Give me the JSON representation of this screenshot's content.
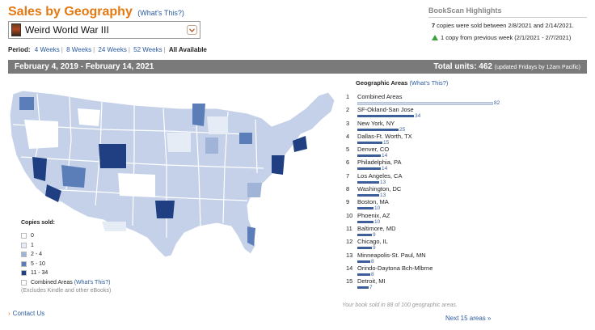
{
  "header": {
    "title": "Sales by Geography",
    "help_link": "(What's This?)"
  },
  "title_select": {
    "value": "Weird World War III"
  },
  "period": {
    "label": "Period:",
    "options": [
      "4 Weeks",
      "8 Weeks",
      "24 Weeks",
      "52 Weeks",
      "All Available"
    ],
    "selected": "All Available"
  },
  "highlights": {
    "title": "BookScan Highlights",
    "copies_count": "7",
    "copies_text": "copies were sold between 2/8/2021 and 2/14/2021.",
    "change_text": "1 copy from previous week (2/1/2021 - 2/7/2021)",
    "change_color": "#3ea03e"
  },
  "date_bar": {
    "range": "February 4, 2019 - February 14, 2021",
    "total_label": "Total units: 462",
    "total_note": "(updated Fridays by 12am Pacific)"
  },
  "legend": {
    "title": "Copies sold:",
    "items": [
      {
        "label": "0",
        "color": "#ffffff"
      },
      {
        "label": "1",
        "color": "#e6ecf6"
      },
      {
        "label": "2 - 4",
        "color": "#9fb4d6"
      },
      {
        "label": "5 - 10",
        "color": "#5b7db8"
      },
      {
        "label": "11 - 34",
        "color": "#1f3f82"
      }
    ],
    "combined_label": "Combined Areas",
    "combined_link": "(What's This?)",
    "note": "(Excludes Kindle and other eBooks)"
  },
  "contact": {
    "label": "Contact Us"
  },
  "geo": {
    "title": "Geographic Areas",
    "help_link": "(What's This?)",
    "areas": [
      {
        "rank": "1",
        "name": "Combined Areas",
        "value": 82
      },
      {
        "rank": "2",
        "name": "SF-Okland-San Jose",
        "value": 34
      },
      {
        "rank": "3",
        "name": "New York, NY",
        "value": 25
      },
      {
        "rank": "4",
        "name": "Dallas-Ft. Worth, TX",
        "value": 15
      },
      {
        "rank": "5",
        "name": "Denver, CO",
        "value": 14
      },
      {
        "rank": "6",
        "name": "Philadelphia, PA",
        "value": 14
      },
      {
        "rank": "7",
        "name": "Los Angeles, CA",
        "value": 13
      },
      {
        "rank": "8",
        "name": "Washington, DC",
        "value": 13
      },
      {
        "rank": "9",
        "name": "Boston, MA",
        "value": 10
      },
      {
        "rank": "10",
        "name": "Phoenix, AZ",
        "value": 10
      },
      {
        "rank": "11",
        "name": "Baltimore, MD",
        "value": 9
      },
      {
        "rank": "12",
        "name": "Chicago, IL",
        "value": 9
      },
      {
        "rank": "13",
        "name": "Minneapolis-St. Paul, MN",
        "value": 8
      },
      {
        "rank": "14",
        "name": "Orindo-Daytona Bch-Mlbrne",
        "value": 8
      },
      {
        "rank": "15",
        "name": "Detroit, MI",
        "value": 7
      }
    ],
    "sold_note": "Your book sold in 88 of 100 geographic areas.",
    "next_link": "Next 15 areas"
  }
}
